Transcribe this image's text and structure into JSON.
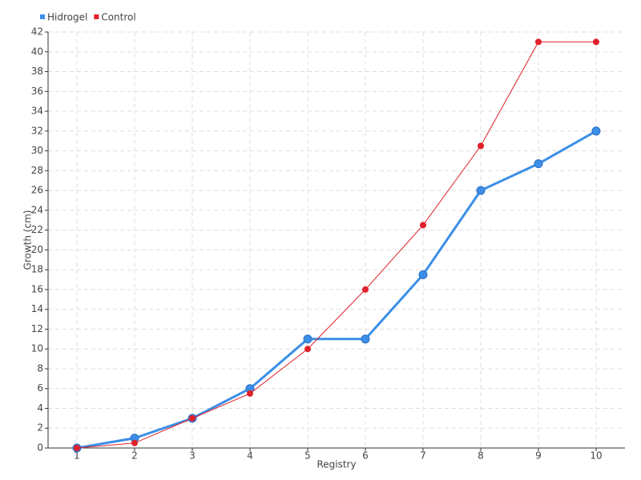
{
  "chart_data": {
    "type": "line",
    "x_label": "Registry",
    "y_label": "Growth (cm)",
    "x": [
      1,
      2,
      3,
      4,
      5,
      6,
      7,
      8,
      9,
      10
    ],
    "xlim": [
      0.5,
      10.5
    ],
    "xticks": [
      1,
      2,
      3,
      4,
      5,
      6,
      7,
      8,
      9,
      10
    ],
    "ylim": [
      0,
      42
    ],
    "yticks": [
      0,
      2,
      4,
      6,
      8,
      10,
      12,
      14,
      16,
      18,
      20,
      22,
      24,
      26,
      28,
      30,
      32,
      34,
      36,
      38,
      40,
      42
    ],
    "grid": true,
    "legend": "top-left",
    "series": [
      {
        "name": "Hidrogel",
        "color": "#3b8fe8",
        "values": [
          0,
          1,
          3,
          6,
          11,
          11,
          17.5,
          26,
          28.7,
          32
        ]
      },
      {
        "name": "Control",
        "color": "#e0202a",
        "values": [
          0,
          0.5,
          3,
          5.5,
          10,
          16,
          22.5,
          30.5,
          41,
          41
        ]
      }
    ]
  }
}
